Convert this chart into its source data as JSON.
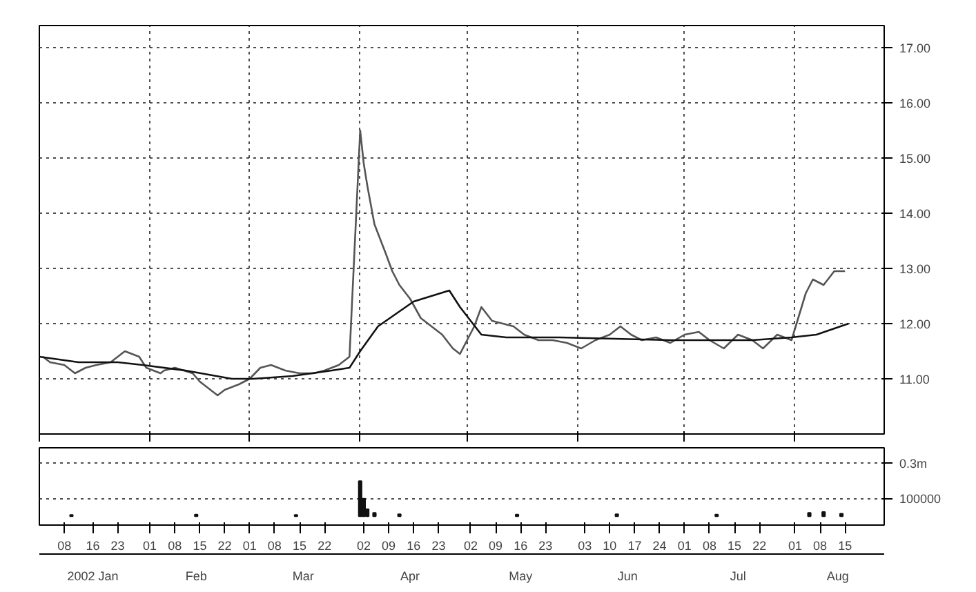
{
  "chart_data": [
    {
      "type": "line",
      "xlim": [
        "2002-01-01",
        "2002-08-26"
      ],
      "ylim": [
        10.0,
        17.4
      ],
      "yticks": [
        {
          "value": 11,
          "label": "11.00"
        },
        {
          "value": 12,
          "label": "12.00"
        },
        {
          "value": 13,
          "label": "13.00"
        },
        {
          "value": 14,
          "label": "14.00"
        },
        {
          "value": 15,
          "label": "15.00"
        },
        {
          "value": 16,
          "label": "16.00"
        },
        {
          "value": 17,
          "label": "17.00"
        }
      ],
      "xticks": [
        {
          "value": "2002-01-01",
          "label": null
        },
        {
          "value": "2002-02-01",
          "label": null
        },
        {
          "value": "2002-03-01",
          "label": null
        },
        {
          "value": "2002-04-01",
          "label": null
        },
        {
          "value": "2002-05-01",
          "label": null
        },
        {
          "value": "2002-06-01",
          "label": null
        },
        {
          "value": "2002-07-01",
          "label": null
        },
        {
          "value": "2002-08-01",
          "label": null
        }
      ],
      "tick_labels": "y",
      "grid": true,
      "line_style": "solid",
      "marker": "none",
      "series": [
        {
          "color": "#555555",
          "x": [
            "2002-01-02",
            "2002-01-04",
            "2002-01-08",
            "2002-01-11",
            "2002-01-14",
            "2002-01-17",
            "2002-01-21",
            "2002-01-25",
            "2002-01-29",
            "2002-01-31",
            "2002-02-04",
            "2002-02-05",
            "2002-02-08",
            "2002-02-13",
            "2002-02-15",
            "2002-02-20",
            "2002-02-22",
            "2002-02-26",
            "2002-03-01",
            "2002-03-04",
            "2002-03-07",
            "2002-03-11",
            "2002-03-15",
            "2002-03-19",
            "2002-03-22",
            "2002-03-26",
            "2002-03-29",
            "2002-04-01",
            "2002-04-02",
            "2002-04-03",
            "2002-04-05",
            "2002-04-08",
            "2002-04-10",
            "2002-04-12",
            "2002-04-15",
            "2002-04-18",
            "2002-04-21",
            "2002-04-24",
            "2002-04-27",
            "2002-04-29",
            "2002-05-01",
            "2002-05-03",
            "2002-05-05",
            "2002-05-08",
            "2002-05-11",
            "2002-05-14",
            "2002-05-17",
            "2002-05-21",
            "2002-05-25",
            "2002-05-29",
            "2002-06-02",
            "2002-06-06",
            "2002-06-10",
            "2002-06-13",
            "2002-06-16",
            "2002-06-19",
            "2002-06-23",
            "2002-06-27",
            "2002-07-01",
            "2002-07-05",
            "2002-07-08",
            "2002-07-12",
            "2002-07-16",
            "2002-07-20",
            "2002-07-23",
            "2002-07-27",
            "2002-07-31",
            "2002-08-04",
            "2002-08-06",
            "2002-08-09",
            "2002-08-12",
            "2002-08-15"
          ],
          "values": [
            11.4,
            11.3,
            11.25,
            11.1,
            11.2,
            11.25,
            11.3,
            11.5,
            11.4,
            11.2,
            11.1,
            11.15,
            11.2,
            11.1,
            10.95,
            10.7,
            10.8,
            10.9,
            11.0,
            11.2,
            11.25,
            11.15,
            11.1,
            11.1,
            11.15,
            11.25,
            11.4,
            15.5,
            14.9,
            14.5,
            13.8,
            13.3,
            12.95,
            12.7,
            12.45,
            12.1,
            11.95,
            11.8,
            11.55,
            11.45,
            11.7,
            11.95,
            12.3,
            12.05,
            12.0,
            11.95,
            11.8,
            11.7,
            11.7,
            11.65,
            11.55,
            11.7,
            11.8,
            11.95,
            11.8,
            11.7,
            11.75,
            11.65,
            11.8,
            11.85,
            11.7,
            11.55,
            11.8,
            11.7,
            11.55,
            11.8,
            11.7,
            12.55,
            12.8,
            12.7,
            12.95,
            12.95
          ]
        },
        {
          "color": "#111111",
          "x": [
            "2002-01-01",
            "2002-01-12",
            "2002-01-23",
            "2002-01-30",
            "2002-02-11",
            "2002-02-24",
            "2002-03-02",
            "2002-03-13",
            "2002-03-24",
            "2002-03-29",
            "2002-04-01",
            "2002-04-06",
            "2002-04-16",
            "2002-04-26",
            "2002-04-29",
            "2002-05-05",
            "2002-05-12",
            "2002-05-27",
            "2002-06-27",
            "2002-07-20",
            "2002-07-31",
            "2002-08-07",
            "2002-08-16"
          ],
          "values": [
            11.4,
            11.3,
            11.3,
            11.25,
            11.15,
            11.0,
            11.0,
            11.05,
            11.15,
            11.2,
            11.5,
            11.95,
            12.4,
            12.6,
            12.3,
            11.8,
            11.75,
            11.75,
            11.7,
            11.7,
            11.75,
            11.8,
            12.0
          ]
        }
      ]
    },
    {
      "type": "bar",
      "xlim": [
        "2002-01-01",
        "2002-08-26"
      ],
      "ylim": [
        -50000,
        390000
      ],
      "yticks": [
        {
          "value": 100000,
          "label": "100000"
        },
        {
          "value": 300000,
          "label": "0.3m"
        }
      ],
      "xticks": [
        {
          "value": "2002-01-08",
          "label": "08"
        },
        {
          "value": "2002-01-16",
          "label": "16"
        },
        {
          "value": "2002-01-23",
          "label": "23"
        },
        {
          "value": "2002-02-01",
          "label": "01"
        },
        {
          "value": "2002-02-08",
          "label": "08"
        },
        {
          "value": "2002-02-15",
          "label": "15"
        },
        {
          "value": "2002-02-22",
          "label": "22"
        },
        {
          "value": "2002-03-01",
          "label": "01"
        },
        {
          "value": "2002-03-08",
          "label": "08"
        },
        {
          "value": "2002-03-15",
          "label": "15"
        },
        {
          "value": "2002-03-22",
          "label": "22"
        },
        {
          "value": "2002-04-02",
          "label": "02"
        },
        {
          "value": "2002-04-09",
          "label": "09"
        },
        {
          "value": "2002-04-16",
          "label": "16"
        },
        {
          "value": "2002-04-23",
          "label": "23"
        },
        {
          "value": "2002-05-02",
          "label": "02"
        },
        {
          "value": "2002-05-09",
          "label": "09"
        },
        {
          "value": "2002-05-16",
          "label": "16"
        },
        {
          "value": "2002-05-23",
          "label": "23"
        },
        {
          "value": "2002-06-03",
          "label": "03"
        },
        {
          "value": "2002-06-10",
          "label": "10"
        },
        {
          "value": "2002-06-17",
          "label": "17"
        },
        {
          "value": "2002-06-24",
          "label": "24"
        },
        {
          "value": "2002-07-01",
          "label": "01"
        },
        {
          "value": "2002-07-08",
          "label": "08"
        },
        {
          "value": "2002-07-15",
          "label": "15"
        },
        {
          "value": "2002-07-22",
          "label": "22"
        },
        {
          "value": "2002-08-01",
          "label": "01"
        },
        {
          "value": "2002-08-08",
          "label": "08"
        },
        {
          "value": "2002-08-15",
          "label": "15"
        }
      ],
      "x2ticks": [
        {
          "value": "2002-01-16",
          "label": "2002 Jan"
        },
        {
          "value": "2002-02-14",
          "label": "Feb"
        },
        {
          "value": "2002-03-16",
          "label": "Mar"
        },
        {
          "value": "2002-04-15",
          "label": "Apr"
        },
        {
          "value": "2002-05-16",
          "label": "May"
        },
        {
          "value": "2002-06-15",
          "label": "Jun"
        },
        {
          "value": "2002-07-16",
          "label": "Jul"
        },
        {
          "value": "2002-08-13",
          "label": "Aug"
        }
      ],
      "grid": "y",
      "x2lim": [
        "2002-01-01",
        "2002-08-26"
      ],
      "series": [
        {
          "color": "#111111",
          "x": [
            "2002-01-10",
            "2002-02-14",
            "2002-03-14",
            "2002-04-01",
            "2002-04-02",
            "2002-04-03",
            "2002-04-05",
            "2002-04-12",
            "2002-05-15",
            "2002-06-12",
            "2002-07-10",
            "2002-08-05",
            "2002-08-09",
            "2002-08-14"
          ],
          "values": [
            8000,
            10000,
            8000,
            200000,
            100000,
            40000,
            20000,
            12000,
            10000,
            12000,
            10000,
            20000,
            25000,
            15000
          ]
        }
      ]
    }
  ]
}
